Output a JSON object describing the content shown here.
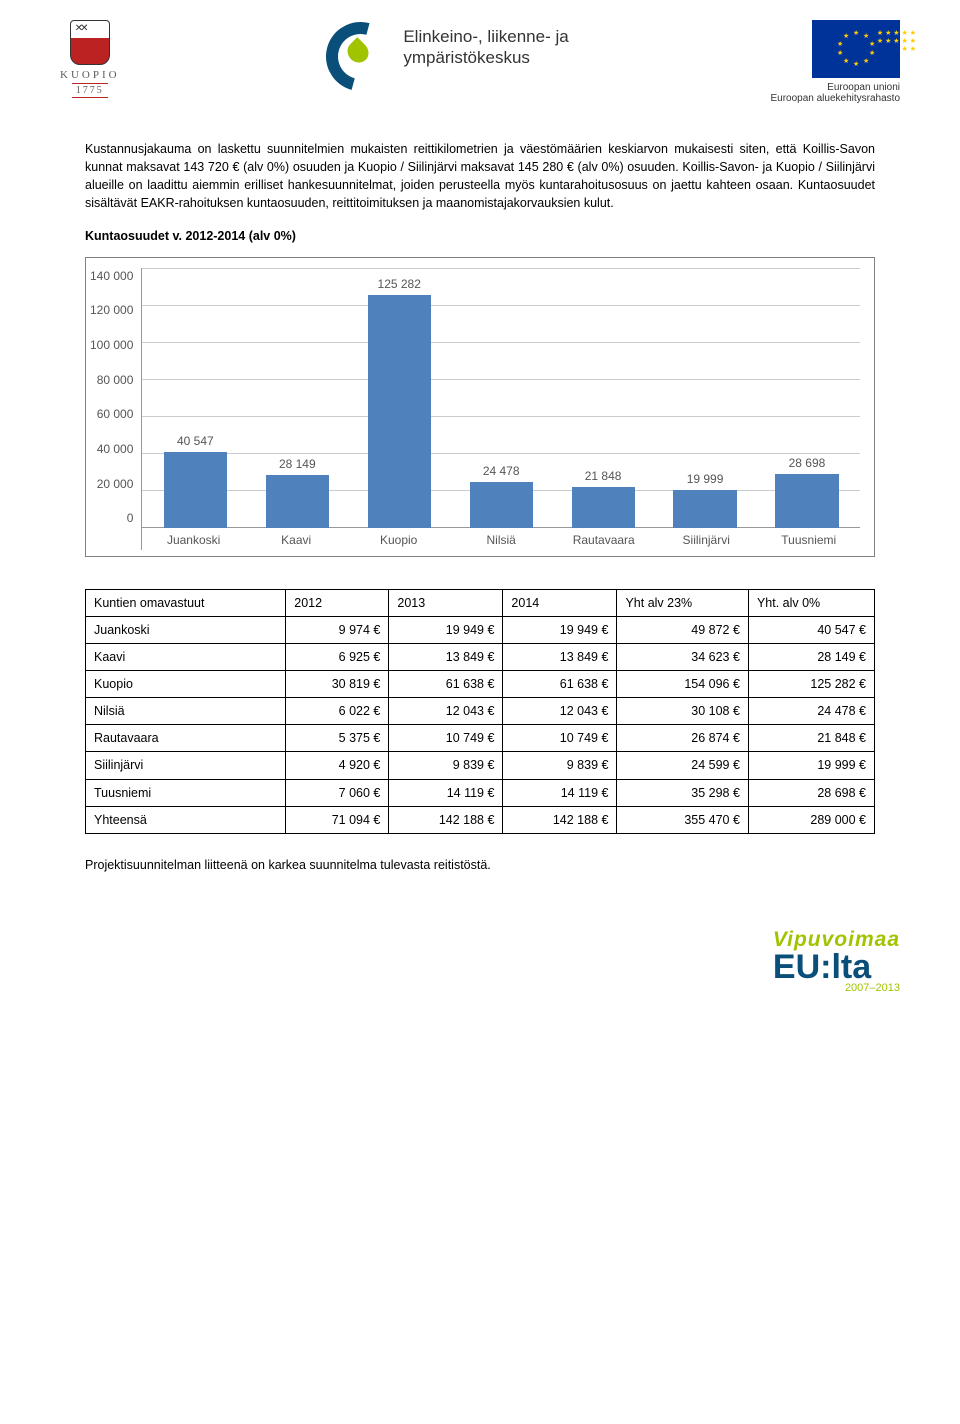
{
  "header": {
    "kuopio": {
      "name": "KUOPIO",
      "year": "1775"
    },
    "ely": {
      "line1": "Elinkeino-, liikenne- ja",
      "line2": "ympäristökeskus"
    },
    "eu": {
      "line1": "Euroopan unioni",
      "line2": "Euroopan aluekehitysrahasto"
    }
  },
  "body": {
    "para1": "Kustannusjakauma on laskettu suunnitelmien mukaisten reittikilometrien ja väestömäärien keskiarvon mukaisesti siten, että Koillis-Savon kunnat maksavat 143 720 € (alv 0%) osuuden ja Kuopio / Siilinjärvi maksavat 145 280 € (alv 0%) osuuden. Koillis-Savon- ja Kuopio / Siilinjärvi alueille on laadittu aiemmin erilliset hankesuunnitelmat, joiden perusteella myös kuntarahoitusosuus on jaettu kahteen osaan. Kuntaosuudet sisältävät EAKR-rahoituksen kuntaosuuden, reittitoimituksen ja maanomistajakorvauksien kulut.",
    "bold1": "Kuntaosuudet v. 2012-2014 (alv 0%)",
    "para2": "Projektisuunnitelman liitteenä on karkea suunnitelma tulevasta reitistöstä."
  },
  "chart": {
    "type": "bar",
    "y_ticks": [
      "140 000",
      "120 000",
      "100 000",
      "80 000",
      "60 000",
      "40 000",
      "20 000",
      "0"
    ],
    "y_max": 140000,
    "bar_color": "#4f81bd",
    "grid_color": "#cccccc",
    "axis_color": "#999999",
    "text_color": "#555555",
    "label_fontsize": 12,
    "bars": [
      {
        "label": "Juankoski",
        "value": 40547,
        "display": "40 547"
      },
      {
        "label": "Kaavi",
        "value": 28149,
        "display": "28 149"
      },
      {
        "label": "Kuopio",
        "value": 125282,
        "display": "125 282"
      },
      {
        "label": "Nilsiä",
        "value": 24478,
        "display": "24 478"
      },
      {
        "label": "Rautavaara",
        "value": 21848,
        "display": "21 848"
      },
      {
        "label": "Siilinjärvi",
        "value": 19999,
        "display": "19 999"
      },
      {
        "label": "Tuusniemi",
        "value": 28698,
        "display": "28 698"
      }
    ]
  },
  "table": {
    "headers": [
      "Kuntien omavastuut",
      "2012",
      "2013",
      "2014",
      "Yht alv 23%",
      "Yht. alv 0%"
    ],
    "rows": [
      [
        "Juankoski",
        "9 974 €",
        "19 949 €",
        "19 949 €",
        "49 872 €",
        "40 547 €"
      ],
      [
        "Kaavi",
        "6 925 €",
        "13 849 €",
        "13 849 €",
        "34 623 €",
        "28 149 €"
      ],
      [
        "Kuopio",
        "30 819 €",
        "61 638 €",
        "61 638 €",
        "154 096 €",
        "125 282 €"
      ],
      [
        "Nilsiä",
        "6 022 €",
        "12 043 €",
        "12 043 €",
        "30 108 €",
        "24 478 €"
      ],
      [
        "Rautavaara",
        "5 375 €",
        "10 749 €",
        "10 749 €",
        "26 874 €",
        "21 848 €"
      ],
      [
        "Siilinjärvi",
        "4 920 €",
        "9 839 €",
        "9 839 €",
        "24 599 €",
        "19 999 €"
      ],
      [
        "Tuusniemi",
        "7 060 €",
        "14 119 €",
        "14 119 €",
        "35 298 €",
        "28 698 €"
      ],
      [
        "Yhteensä",
        "71 094 €",
        "142 188 €",
        "142 188 €",
        "355 470 €",
        "289 000 €"
      ]
    ]
  },
  "footer": {
    "vipu_l1": "Vipuvoimaa",
    "vipu_l2": "EU:lta",
    "vipu_l3": "2007–2013"
  }
}
